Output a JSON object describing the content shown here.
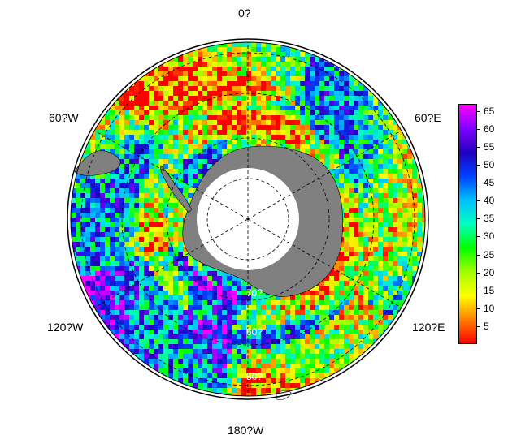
{
  "map": {
    "projection": "south-polar-stereographic",
    "longitude_labels": {
      "top": "0?",
      "upper_right": "60?E",
      "lower_right": "120?E",
      "bottom": "180?W",
      "lower_left": "120?W",
      "upper_left": "60?W"
    },
    "latitude_labels": [
      "70?",
      "60?",
      "50?"
    ],
    "colors": {
      "land": "#808080",
      "ocean_background": "#ffffff",
      "pole_hole": "#ffffff"
    }
  },
  "colorbar": {
    "ticks": [
      "65",
      "60",
      "55",
      "50",
      "45",
      "40",
      "35",
      "30",
      "25",
      "20",
      "15",
      "10",
      "5"
    ],
    "min": 0,
    "max": 67,
    "stops": [
      "#ff0000",
      "#ff8000",
      "#ffff00",
      "#a0ff00",
      "#00ff00",
      "#00ffc0",
      "#00c0ff",
      "#0040ff",
      "#2000c0",
      "#8000ff",
      "#ff00ff"
    ]
  }
}
